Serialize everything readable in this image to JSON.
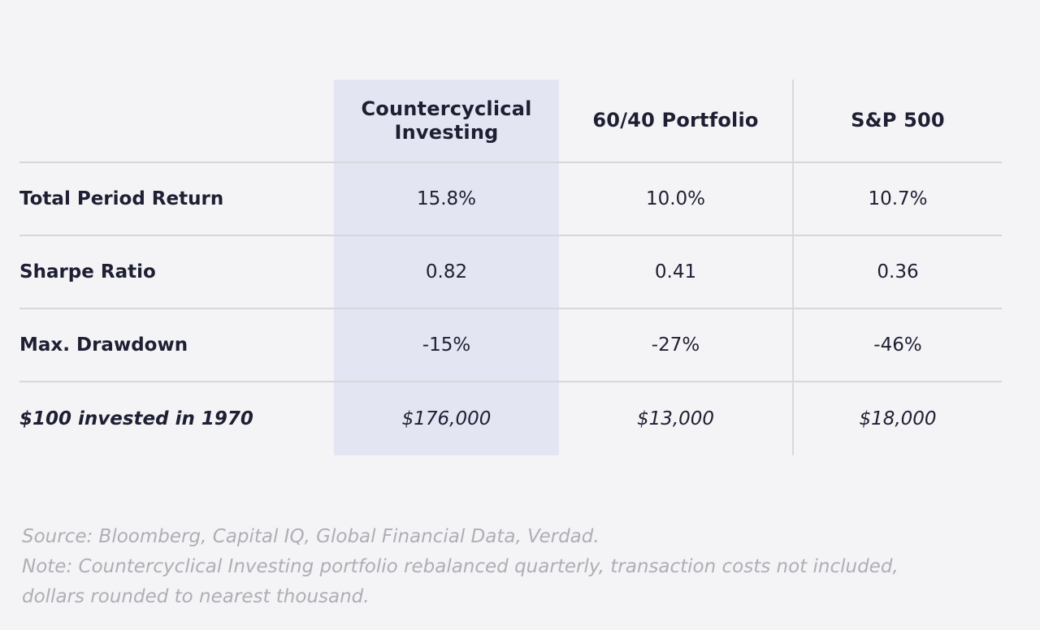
{
  "table": {
    "headers": [
      "",
      "Countercyclical\nInvesting",
      "60/40 Portfolio",
      "S&P 500"
    ],
    "rows": [
      {
        "label": "Total Period Return",
        "values": [
          "15.8%",
          "10.0%",
          "10.7%"
        ],
        "italic": false
      },
      {
        "label": "Sharpe Ratio",
        "values": [
          "0.82",
          "0.41",
          "0.36"
        ],
        "italic": false
      },
      {
        "label": "Max. Drawdown",
        "values": [
          "-15%",
          "-27%",
          "-46%"
        ],
        "italic": false
      },
      {
        "label": "$100 invested in 1970",
        "values": [
          "$176,000",
          "$13,000",
          "$18,000"
        ],
        "italic": true
      }
    ],
    "highlight_color": "#e4e5f2"
  },
  "notes": {
    "source": "Source: Bloomberg, Capital IQ, Global Financial Data, Verdad.",
    "note_line1": "Note: Countercyclical Investing portfolio rebalanced quarterly, transaction costs not included,",
    "note_line2": "dollars rounded to nearest thousand."
  }
}
